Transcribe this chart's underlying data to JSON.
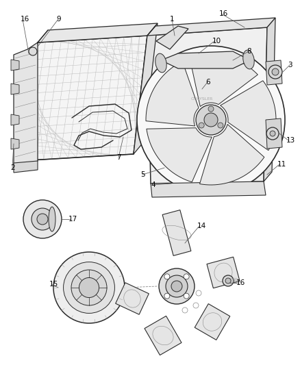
{
  "bg_color": "#ffffff",
  "line_color": "#2a2a2a",
  "label_color": "#000000",
  "label_fontsize": 7.5,
  "fig_width": 4.38,
  "fig_height": 5.33,
  "dpi": 100
}
